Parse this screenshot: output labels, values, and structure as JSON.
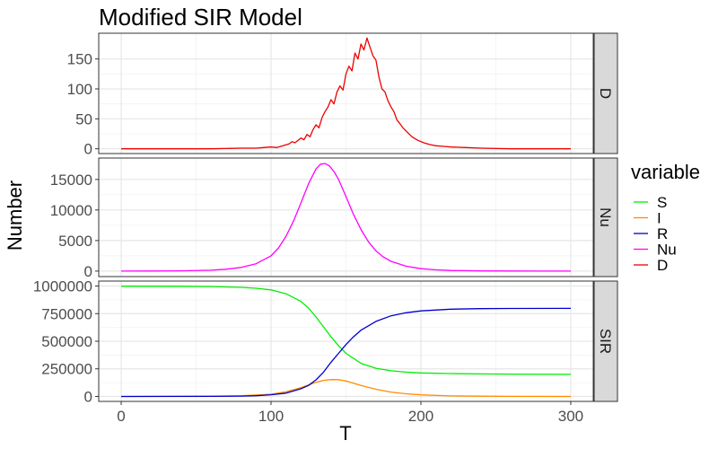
{
  "chart_data": {
    "type": "line",
    "title": "Modified SIR Model",
    "xlabel": "T",
    "ylabel": "Number",
    "xlim": [
      -15,
      315
    ],
    "x_ticks": [
      0,
      100,
      200,
      300
    ],
    "grid": true,
    "legend": {
      "title": "variable",
      "position": "right",
      "items": [
        {
          "name": "S",
          "color": "#00EE00"
        },
        {
          "name": "I",
          "color": "#FF8C00"
        },
        {
          "name": "R",
          "color": "#0000CD"
        },
        {
          "name": "Nu",
          "color": "#FF00FF"
        },
        {
          "name": "D",
          "color": "#EE0000"
        }
      ]
    },
    "panels": [
      {
        "strip": "D",
        "ylim": [
          -8,
          193
        ],
        "y_ticks": [
          0,
          50,
          100,
          150
        ],
        "y_tick_labels": [
          "0",
          "50",
          "100",
          "150"
        ],
        "series": [
          {
            "name": "D",
            "color": "#EE0000",
            "x": [
              0,
              60,
              80,
              90,
              95,
              100,
              104,
              108,
              112,
              114,
              116,
              118,
              120,
              122,
              124,
              126,
              128,
              130,
              132,
              134,
              136,
              138,
              140,
              142,
              144,
              146,
              148,
              150,
              152,
              154,
              156,
              158,
              160,
              162,
              164,
              166,
              168,
              170,
              172,
              174,
              176,
              178,
              180,
              182,
              184,
              186,
              188,
              190,
              194,
              198,
              202,
              206,
              210,
              215,
              220,
              230,
              240,
              260,
              300
            ],
            "y": [
              0,
              0,
              1,
              1,
              2,
              3,
              2,
              5,
              8,
              12,
              10,
              14,
              18,
              15,
              24,
              20,
              32,
              40,
              35,
              52,
              62,
              70,
              82,
              75,
              95,
              105,
              98,
              125,
              138,
              130,
              160,
              150,
              175,
              165,
              185,
              170,
              155,
              148,
              120,
              100,
              95,
              80,
              70,
              62,
              48,
              42,
              35,
              30,
              20,
              14,
              10,
              7,
              5,
              4,
              3,
              2,
              1,
              0,
              0
            ]
          }
        ]
      },
      {
        "strip": "Nu",
        "ylim": [
          -900,
          18500
        ],
        "y_ticks": [
          0,
          5000,
          10000,
          15000
        ],
        "y_tick_labels": [
          "0",
          "5000",
          "10000",
          "15000"
        ],
        "series": [
          {
            "name": "Nu",
            "color": "#FF00FF",
            "x": [
              0,
              20,
              40,
              60,
              70,
              80,
              90,
              100,
              105,
              110,
              115,
              120,
              125,
              130,
              133,
              136,
              139,
              142,
              145,
              150,
              155,
              160,
              165,
              170,
              175,
              180,
              190,
              200,
              210,
              220,
              240,
              260,
              280,
              300
            ],
            "y": [
              0,
              10,
              40,
              150,
              300,
              600,
              1200,
              2500,
              3800,
              5700,
              8200,
              11200,
              14300,
              16700,
              17500,
              17600,
              17200,
              16300,
              15000,
              12200,
              9300,
              6800,
              4800,
              3300,
              2300,
              1600,
              800,
              400,
              200,
              100,
              30,
              10,
              3,
              1
            ]
          }
        ]
      },
      {
        "strip": "SIR",
        "ylim": [
          -45000,
          1045000
        ],
        "y_ticks": [
          0,
          250000,
          500000,
          750000,
          1000000
        ],
        "y_tick_labels": [
          "0",
          "250000",
          "500000",
          "750000",
          "1000000"
        ],
        "series": [
          {
            "name": "S",
            "color": "#00EE00",
            "x": [
              0,
              40,
              60,
              80,
              90,
              100,
              110,
              120,
              125,
              130,
              135,
              140,
              145,
              150,
              160,
              170,
              180,
              190,
              200,
              220,
              240,
              260,
              300
            ],
            "y": [
              999000,
              998000,
              995000,
              988000,
              980000,
              965000,
              930000,
              860000,
              800000,
              720000,
              630000,
              540000,
              460000,
              390000,
              300000,
              255000,
              232000,
              220000,
              213000,
              207000,
              204000,
              202000,
              200000
            ]
          },
          {
            "name": "I",
            "color": "#FF8C00",
            "x": [
              0,
              60,
              80,
              100,
              110,
              120,
              125,
              130,
              135,
              140,
              145,
              150,
              155,
              160,
              170,
              180,
              190,
              200,
              220,
              240,
              260,
              300
            ],
            "y": [
              0,
              2000,
              6000,
              20000,
              42000,
              80000,
              105000,
              128000,
              145000,
              153000,
              152000,
              140000,
              120000,
              100000,
              65000,
              40000,
              24000,
              14000,
              5000,
              2000,
              500,
              100
            ]
          },
          {
            "name": "R",
            "color": "#0000CD",
            "x": [
              0,
              60,
              80,
              90,
              100,
              110,
              120,
              125,
              130,
              135,
              140,
              145,
              150,
              155,
              160,
              170,
              180,
              190,
              200,
              220,
              240,
              260,
              300
            ],
            "y": [
              0,
              500,
              3000,
              6000,
              15000,
              30000,
              70000,
              100000,
              150000,
              220000,
              310000,
              390000,
              470000,
              540000,
              600000,
              680000,
              730000,
              758000,
              775000,
              790000,
              795000,
              797000,
              798000
            ]
          }
        ]
      }
    ]
  }
}
